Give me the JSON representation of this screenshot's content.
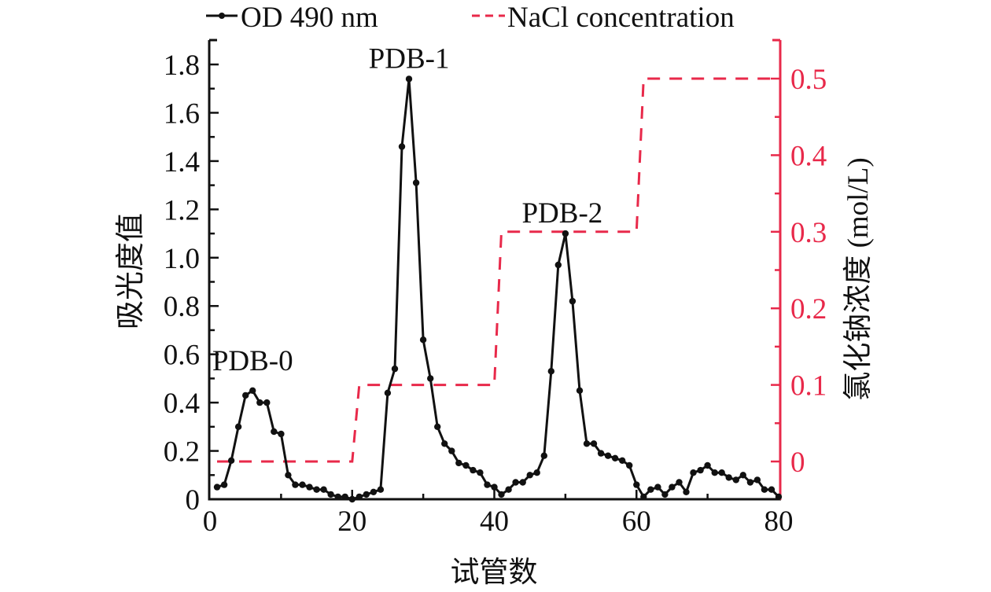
{
  "chart_data": {
    "type": "line",
    "title": "",
    "xlabel": "试管数",
    "ylabel": "吸光度值",
    "y2label": "氯化钠浓度 (mol/L)",
    "xlim": [
      0,
      80
    ],
    "ylim": [
      0,
      1.88
    ],
    "y2lim": [
      -0.049,
      0.55
    ],
    "xticks": [
      "0",
      "20",
      "40",
      "60",
      "80"
    ],
    "xtick_values": [
      0,
      20,
      40,
      60,
      80
    ],
    "yticks": [
      "0",
      "0.2",
      "0.4",
      "0.6",
      "0.8",
      "1.0",
      "1.2",
      "1.4",
      "1.6",
      "1.8"
    ],
    "ytick_values": [
      0,
      0.2,
      0.4,
      0.6,
      0.8,
      1.0,
      1.2,
      1.4,
      1.6,
      1.8
    ],
    "y2ticks": [
      "0",
      "0.1",
      "0.2",
      "0.3",
      "0.4",
      "0.5"
    ],
    "y2tick_values": [
      0,
      0.1,
      0.2,
      0.3,
      0.4,
      0.5
    ],
    "grid": false,
    "legend_position": "top",
    "colors": {
      "od": "#111111",
      "nacl": "#e8294a",
      "axis": "#111111"
    },
    "series": [
      {
        "name": "OD 490 nm",
        "axis": "left",
        "style": "line-marker",
        "x": [
          1,
          2,
          3,
          4,
          5,
          6,
          7,
          8,
          9,
          10,
          11,
          12,
          13,
          14,
          15,
          16,
          17,
          18,
          19,
          20,
          21,
          22,
          23,
          24,
          25,
          26,
          27,
          28,
          29,
          30,
          31,
          32,
          33,
          34,
          35,
          36,
          37,
          38,
          39,
          40,
          41,
          42,
          43,
          44,
          45,
          46,
          47,
          48,
          49,
          50,
          51,
          52,
          53,
          54,
          55,
          56,
          57,
          58,
          59,
          60,
          61,
          62,
          63,
          64,
          65,
          66,
          67,
          68,
          69,
          70,
          71,
          72,
          73,
          74,
          75,
          76,
          77,
          78,
          79,
          80
        ],
        "values": [
          0.05,
          0.06,
          0.16,
          0.3,
          0.43,
          0.45,
          0.4,
          0.4,
          0.28,
          0.27,
          0.1,
          0.06,
          0.06,
          0.05,
          0.04,
          0.04,
          0.02,
          0.01,
          0.01,
          0.0,
          0.01,
          0.02,
          0.03,
          0.04,
          0.44,
          0.54,
          1.46,
          1.74,
          1.31,
          0.66,
          0.5,
          0.3,
          0.23,
          0.2,
          0.15,
          0.14,
          0.12,
          0.11,
          0.06,
          0.05,
          0.02,
          0.04,
          0.07,
          0.07,
          0.1,
          0.11,
          0.18,
          0.53,
          0.97,
          1.1,
          0.82,
          0.45,
          0.23,
          0.23,
          0.19,
          0.18,
          0.17,
          0.16,
          0.14,
          0.06,
          0.01,
          0.04,
          0.05,
          0.02,
          0.05,
          0.07,
          0.03,
          0.11,
          0.12,
          0.14,
          0.11,
          0.11,
          0.09,
          0.08,
          0.1,
          0.07,
          0.08,
          0.04,
          0.04,
          0.01
        ]
      },
      {
        "name": "NaCl concentration",
        "axis": "right",
        "style": "dashed",
        "x": [
          1,
          20,
          21,
          40,
          41,
          60,
          61,
          80
        ],
        "values": [
          0,
          0,
          0.1,
          0.1,
          0.3,
          0.3,
          0.5,
          0.5
        ]
      }
    ],
    "annotations": [
      {
        "text": "PDB-0",
        "x": 6,
        "y": 0.45
      },
      {
        "text": "PDB-1",
        "x": 28,
        "y": 1.74
      },
      {
        "text": "PDB-2",
        "x": 50,
        "y": 1.1
      }
    ]
  }
}
